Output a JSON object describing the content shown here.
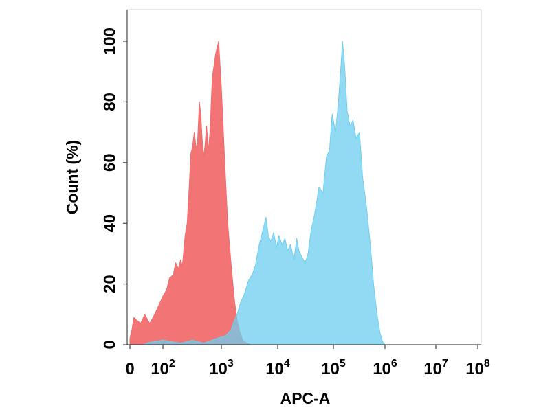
{
  "chart_data": {
    "type": "area",
    "xlabel": "APC-A",
    "ylabel": "Count  (%)",
    "x_scale": "biexponential",
    "xlim": [
      0,
      100000000
    ],
    "ylim": [
      0,
      110
    ],
    "grid": false,
    "x_ticks": [
      {
        "value": 0,
        "base": "0",
        "exp": ""
      },
      {
        "value": 100,
        "base": "10",
        "exp": "2"
      },
      {
        "value": 1000,
        "base": "10",
        "exp": "3"
      },
      {
        "value": 10000,
        "base": "10",
        "exp": "4"
      },
      {
        "value": 100000,
        "base": "10",
        "exp": "5"
      },
      {
        "value": 1000000,
        "base": "10",
        "exp": "6"
      },
      {
        "value": 10000000,
        "base": "10",
        "exp": "7"
      },
      {
        "value": 100000000,
        "base": "10",
        "exp": "8"
      }
    ],
    "y_ticks": [
      0,
      20,
      40,
      60,
      80,
      100
    ],
    "series": [
      {
        "color": "#f26d6d",
        "points": [
          [
            0,
            2
          ],
          [
            6,
            5
          ],
          [
            12,
            9
          ],
          [
            22,
            8
          ],
          [
            32,
            7
          ],
          [
            45,
            10
          ],
          [
            60,
            7
          ],
          [
            75,
            10
          ],
          [
            100,
            16
          ],
          [
            115,
            18
          ],
          [
            130,
            22
          ],
          [
            150,
            23
          ],
          [
            165,
            27
          ],
          [
            185,
            25
          ],
          [
            200,
            28
          ],
          [
            215,
            26
          ],
          [
            240,
            36
          ],
          [
            260,
            40
          ],
          [
            280,
            51
          ],
          [
            300,
            63
          ],
          [
            320,
            65
          ],
          [
            345,
            70
          ],
          [
            370,
            65
          ],
          [
            390,
            66
          ],
          [
            420,
            80
          ],
          [
            445,
            76
          ],
          [
            470,
            68
          ],
          [
            500,
            62
          ],
          [
            520,
            65
          ],
          [
            560,
            72
          ],
          [
            600,
            64
          ],
          [
            640,
            70
          ],
          [
            700,
            88
          ],
          [
            800,
            96
          ],
          [
            900,
            100
          ],
          [
            1000,
            85
          ],
          [
            1150,
            60
          ],
          [
            1300,
            40
          ],
          [
            1500,
            26
          ],
          [
            1700,
            15
          ],
          [
            1900,
            8
          ],
          [
            2150,
            4
          ],
          [
            2400,
            1.5
          ],
          [
            2800,
            0.5
          ],
          [
            3300,
            0
          ]
        ]
      },
      {
        "color": "#6ecef0",
        "points": [
          [
            40,
            0
          ],
          [
            60,
            0.8
          ],
          [
            100,
            1.5
          ],
          [
            200,
            0.5
          ],
          [
            320,
            1.5
          ],
          [
            500,
            0.5
          ],
          [
            800,
            2
          ],
          [
            1200,
            3
          ],
          [
            1500,
            5
          ],
          [
            1700,
            8
          ],
          [
            1900,
            10
          ],
          [
            2200,
            14
          ],
          [
            2600,
            17
          ],
          [
            3000,
            21
          ],
          [
            3500,
            23
          ],
          [
            4000,
            26
          ],
          [
            4700,
            33
          ],
          [
            5500,
            38
          ],
          [
            6200,
            42
          ],
          [
            6800,
            36
          ],
          [
            7500,
            34
          ],
          [
            8500,
            37
          ],
          [
            9500,
            32
          ],
          [
            10500,
            36
          ],
          [
            12000,
            33
          ],
          [
            13500,
            35
          ],
          [
            15000,
            31
          ],
          [
            17000,
            33
          ],
          [
            19500,
            28
          ],
          [
            22000,
            35
          ],
          [
            24000,
            31
          ],
          [
            27000,
            29
          ],
          [
            31000,
            27
          ],
          [
            35000,
            30
          ],
          [
            40000,
            38
          ],
          [
            46000,
            43
          ],
          [
            55000,
            52
          ],
          [
            65000,
            50
          ],
          [
            75000,
            62
          ],
          [
            85000,
            64
          ],
          [
            95000,
            76
          ],
          [
            110000,
            70
          ],
          [
            125000,
            80
          ],
          [
            140000,
            92
          ],
          [
            150000,
            100
          ],
          [
            165000,
            92
          ],
          [
            185000,
            77
          ],
          [
            210000,
            72
          ],
          [
            240000,
            74
          ],
          [
            275000,
            68
          ],
          [
            320000,
            70
          ],
          [
            370000,
            55
          ],
          [
            440000,
            45
          ],
          [
            520000,
            33
          ],
          [
            600000,
            20
          ],
          [
            700000,
            10
          ],
          [
            800000,
            4
          ],
          [
            900000,
            1
          ],
          [
            1000000,
            0
          ]
        ]
      }
    ]
  }
}
